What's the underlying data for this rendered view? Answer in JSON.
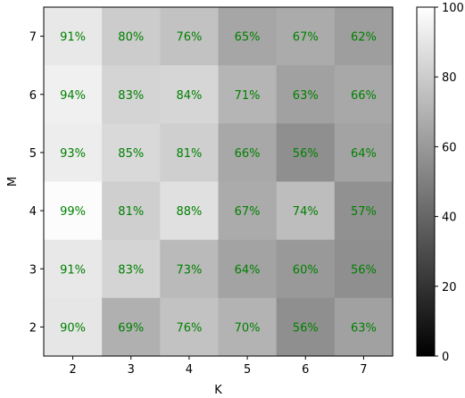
{
  "chart_data": {
    "type": "heatmap",
    "title": "",
    "xlabel": "K",
    "ylabel": "M",
    "x_categories": [
      "2",
      "3",
      "4",
      "5",
      "6",
      "7"
    ],
    "y_categories": [
      "7",
      "6",
      "5",
      "4",
      "3",
      "2"
    ],
    "values": [
      [
        91,
        80,
        76,
        65,
        67,
        62
      ],
      [
        94,
        83,
        84,
        71,
        63,
        66
      ],
      [
        93,
        85,
        81,
        66,
        56,
        64
      ],
      [
        99,
        81,
        88,
        67,
        74,
        57
      ],
      [
        91,
        83,
        73,
        64,
        60,
        56
      ],
      [
        90,
        69,
        76,
        70,
        56,
        63
      ]
    ],
    "value_suffix": "%",
    "colormap": "gray",
    "vmin": 0,
    "vmax": 100,
    "colorbar_ticks": [
      "0",
      "20",
      "40",
      "60",
      "80",
      "100"
    ],
    "annotation_color": "#008000"
  }
}
